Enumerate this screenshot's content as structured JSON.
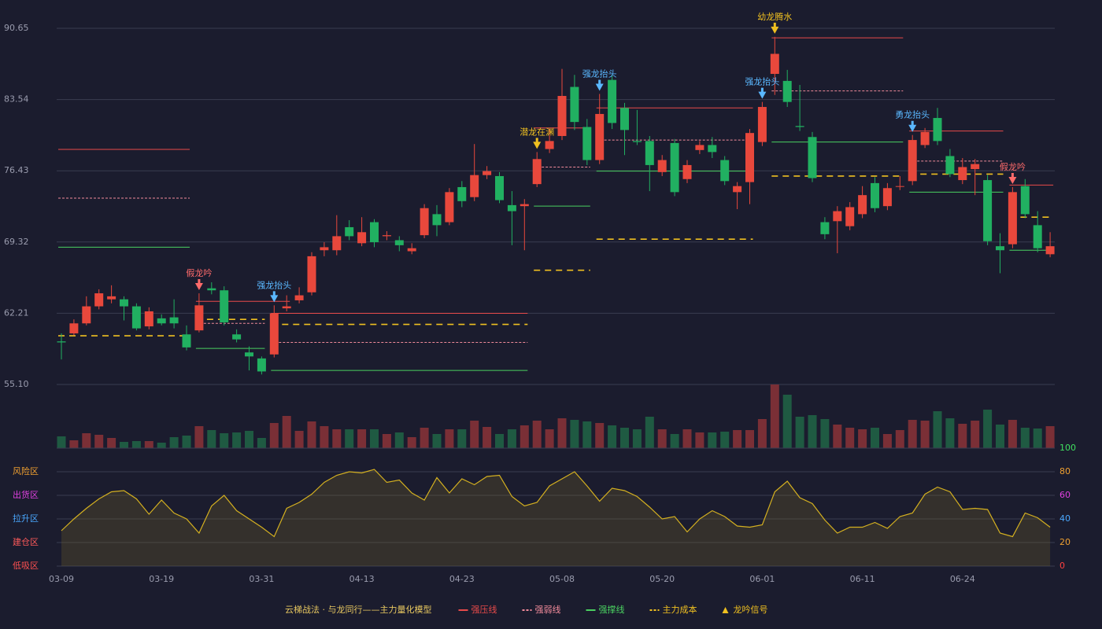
{
  "chart_data": [
    {
      "type": "candlestick",
      "categories": [
        "03-09",
        null,
        null,
        null,
        null,
        null,
        null,
        null,
        "03-19",
        null,
        null,
        null,
        null,
        null,
        null,
        null,
        "03-31",
        null,
        null,
        null,
        null,
        null,
        null,
        null,
        "04-13",
        null,
        null,
        null,
        null,
        null,
        null,
        null,
        "04-23",
        null,
        null,
        null,
        null,
        null,
        null,
        null,
        "05-08",
        null,
        null,
        null,
        null,
        null,
        null,
        null,
        "05-20",
        null,
        null,
        null,
        null,
        null,
        null,
        null,
        "06-01",
        null,
        null,
        null,
        null,
        null,
        null,
        null,
        "06-11",
        null,
        null,
        null,
        null,
        null,
        null,
        null,
        "06-24",
        null,
        null,
        null,
        null,
        null,
        null,
        null
      ],
      "open": [
        59.4,
        60.2,
        61.2,
        62.9,
        63.6,
        63.6,
        62.9,
        60.9,
        61.7,
        61.8,
        60.1,
        60.5,
        64.7,
        64.5,
        60.1,
        58.3,
        57.7,
        58.1,
        62.7,
        63.5,
        64.3,
        68.5,
        68.5,
        70.8,
        69.2,
        71.3,
        69.9,
        69.5,
        68.4,
        70.0,
        72.1,
        71.3,
        74.8,
        73.8,
        76.0,
        75.9,
        73.0,
        72.9,
        75.1,
        78.6,
        79.9,
        84.8,
        80.8,
        77.5,
        85.5,
        82.7,
        79.4,
        79.4,
        76.3,
        79.2,
        75.6,
        78.5,
        79.0,
        77.5,
        74.3,
        75.3,
        79.3,
        86.1,
        85.4,
        80.9,
        79.8,
        71.3,
        71.4,
        70.9,
        72.1,
        75.2,
        72.9,
        74.9,
        75.4,
        79.0,
        81.7,
        77.9,
        75.5,
        76.6,
        75.5,
        68.9,
        69.1,
        74.9,
        71.0,
        68.1
      ],
      "high": [
        60.2,
        61.6,
        63.9,
        64.6,
        65.0,
        63.9,
        63.2,
        62.8,
        62.1,
        63.6,
        61.0,
        64.2,
        65.3,
        64.9,
        60.6,
        58.9,
        57.9,
        63.0,
        64.0,
        64.8,
        68.3,
        69.3,
        72.0,
        71.5,
        71.8,
        71.6,
        70.4,
        69.9,
        69.2,
        73.1,
        73.0,
        74.7,
        75.4,
        79.1,
        76.9,
        76.3,
        74.4,
        73.6,
        78.3,
        80.6,
        86.6,
        86.0,
        81.6,
        84.1,
        86.0,
        83.2,
        82.5,
        79.9,
        78.0,
        79.6,
        77.5,
        79.4,
        79.8,
        77.9,
        75.3,
        80.6,
        83.3,
        89.8,
        86.5,
        85.0,
        80.3,
        71.8,
        72.9,
        73.3,
        74.9,
        75.8,
        75.2,
        75.9,
        80.0,
        80.7,
        82.7,
        78.6,
        77.7,
        77.6,
        76.0,
        70.2,
        74.8,
        75.6,
        72.4,
        70.3
      ],
      "low": [
        57.6,
        60.0,
        61.0,
        62.6,
        63.2,
        61.5,
        60.5,
        60.6,
        61.0,
        60.7,
        58.5,
        60.3,
        64.1,
        61.0,
        59.3,
        56.5,
        56.1,
        57.8,
        62.4,
        63.2,
        64.0,
        67.9,
        68.0,
        69.5,
        68.9,
        68.8,
        69.5,
        68.4,
        68.1,
        69.7,
        69.9,
        71.0,
        72.8,
        73.4,
        75.6,
        73.2,
        69.0,
        68.5,
        74.8,
        78.2,
        79.5,
        80.5,
        77.0,
        77.1,
        80.6,
        78.0,
        79.0,
        74.4,
        75.9,
        73.9,
        75.2,
        78.1,
        77.7,
        75.0,
        72.6,
        73.1,
        78.9,
        84.0,
        82.8,
        80.4,
        75.3,
        69.6,
        68.2,
        70.5,
        71.7,
        72.3,
        72.5,
        74.5,
        75.0,
        78.7,
        79.0,
        75.8,
        75.1,
        74.0,
        69.0,
        66.2,
        68.7,
        71.7,
        68.3,
        67.8
      ],
      "close": [
        59.3,
        61.2,
        62.9,
        64.2,
        63.9,
        62.9,
        60.7,
        62.4,
        61.2,
        61.2,
        58.8,
        63.0,
        64.5,
        61.3,
        59.6,
        57.9,
        56.4,
        62.2,
        62.9,
        64.0,
        67.9,
        68.8,
        69.9,
        69.9,
        70.3,
        69.3,
        70.0,
        69.0,
        68.7,
        72.7,
        71.0,
        74.3,
        73.4,
        76.0,
        76.4,
        73.5,
        72.4,
        73.1,
        77.6,
        79.4,
        83.9,
        81.3,
        77.5,
        82.1,
        81.2,
        80.5,
        79.3,
        77.0,
        77.5,
        74.3,
        77.0,
        79.0,
        78.3,
        75.4,
        74.9,
        80.2,
        82.8,
        88.1,
        83.3,
        80.8,
        75.7,
        70.1,
        72.4,
        72.8,
        74.0,
        72.7,
        74.7,
        74.9,
        79.5,
        80.3,
        79.4,
        76.1,
        76.8,
        77.1,
        69.4,
        68.5,
        74.3,
        72.1,
        68.7,
        68.9
      ],
      "up_color": "#e8483c",
      "down_color": "#21b061",
      "ylim": [
        55.1,
        90.65
      ],
      "yticks": [
        {
          "value": 55.1,
          "label": "55.10"
        },
        62.21,
        69.32,
        76.43,
        83.54,
        90.65
      ],
      "grid": true,
      "legend_title": "云梯战法 · 与龙同行——主力量化模型",
      "levels": [
        {
          "name": "强压线",
          "color": "#e84a4a",
          "dash": false,
          "segments": [
            {
              "from": 0,
              "to": 10,
              "value": 78.56
            },
            {
              "from": 11,
              "to": 18,
              "value": 63.4
            },
            {
              "from": 17,
              "to": 37,
              "value": 62.2
            },
            {
              "from": 38,
              "to": 42,
              "value": 80.7
            },
            {
              "from": 43,
              "to": 55,
              "value": 82.7
            },
            {
              "from": 57,
              "to": 67,
              "value": 89.7
            },
            {
              "from": 68,
              "to": 75,
              "value": 80.4
            },
            {
              "from": 76,
              "to": 79,
              "value": 75.0
            }
          ]
        },
        {
          "name": "强弱线",
          "color": "#f08a9a",
          "dash": true,
          "segments": [
            {
              "from": 0,
              "to": 10,
              "value": 73.7
            },
            {
              "from": 11,
              "to": 16,
              "value": 61.2
            },
            {
              "from": 17,
              "to": 37,
              "value": 59.3
            },
            {
              "from": 38,
              "to": 42,
              "value": 76.8
            },
            {
              "from": 43,
              "to": 55,
              "value": 79.5
            },
            {
              "from": 57,
              "to": 67,
              "value": 84.4
            },
            {
              "from": 68,
              "to": 75,
              "value": 77.4
            }
          ]
        },
        {
          "name": "强撑线",
          "color": "#4ad060",
          "dash": false,
          "segments": [
            {
              "from": 0,
              "to": 10,
              "value": 68.8
            },
            {
              "from": 11,
              "to": 16,
              "value": 58.7
            },
            {
              "from": 17,
              "to": 37,
              "value": 56.5
            },
            {
              "from": 38,
              "to": 42,
              "value": 72.9
            },
            {
              "from": 43,
              "to": 55,
              "value": 76.4
            },
            {
              "from": 57,
              "to": 67,
              "value": 79.3
            },
            {
              "from": 68,
              "to": 75,
              "value": 74.3
            },
            {
              "from": 76,
              "to": 79,
              "value": 68.5
            }
          ]
        },
        {
          "name": "主力成本",
          "color": "#f0c020",
          "dash": true,
          "segments": [
            {
              "from": 0,
              "to": 10,
              "value": 59.96
            },
            {
              "from": 11,
              "to": 16,
              "value": 61.6
            },
            {
              "from": 17,
              "to": 37,
              "value": 61.1
            },
            {
              "from": 38,
              "to": 42,
              "value": 66.5
            },
            {
              "from": 43,
              "to": 55,
              "value": 69.6
            },
            {
              "from": 57,
              "to": 67,
              "value": 75.9
            },
            {
              "from": 68,
              "to": 75,
              "value": 76.1
            },
            {
              "from": 76,
              "to": 79,
              "value": 71.8
            }
          ]
        }
      ],
      "signal_legend": "龙吟信号",
      "signal_legend_color": "#f0c020",
      "signals": [
        {
          "label": "假龙吟",
          "index": 11,
          "color": "#ff6b6b"
        },
        {
          "label": "强龙抬头",
          "index": 17,
          "color": "#5ab8ff"
        },
        {
          "label": "潜龙在渊",
          "index": 38,
          "color": "#f0c020"
        },
        {
          "label": "强龙抬头",
          "index": 43,
          "color": "#5ab8ff"
        },
        {
          "label": "强龙抬头",
          "index": 56,
          "color": "#5ab8ff"
        },
        {
          "label": "幼龙腾水",
          "index": 57,
          "color": "#f0c020"
        },
        {
          "label": "勇龙抬头",
          "index": 68,
          "color": "#5ab8ff"
        },
        {
          "label": "假龙吟",
          "index": 76,
          "color": "#ff6b6b"
        }
      ]
    },
    {
      "type": "bar",
      "values": [
        15,
        10,
        19,
        17,
        13,
        8,
        9,
        9,
        7,
        14,
        16,
        28,
        23,
        19,
        20,
        22,
        13,
        32,
        41,
        22,
        34,
        28,
        24,
        24,
        24,
        24,
        18,
        20,
        14,
        26,
        18,
        24,
        24,
        35,
        27,
        18,
        24,
        29,
        35,
        24,
        38,
        36,
        34,
        32,
        29,
        26,
        24,
        40,
        24,
        18,
        24,
        20,
        20,
        21,
        23,
        23,
        37,
        81,
        68,
        40,
        42,
        37,
        30,
        26,
        24,
        26,
        18,
        23,
        36,
        35,
        47,
        38,
        31,
        35,
        49,
        30,
        36,
        26,
        25,
        28
      ],
      "up_color": "#7a2f36",
      "down_color": "#1f5a42"
    },
    {
      "type": "line",
      "values": [
        30,
        40,
        49,
        57,
        63,
        64,
        57,
        44,
        56,
        45,
        40,
        28,
        51,
        60,
        47,
        40,
        33,
        25,
        49,
        54,
        61,
        71,
        77,
        80,
        79,
        82,
        71,
        73,
        62,
        56,
        75,
        62,
        74,
        69,
        76,
        77,
        59,
        51,
        54,
        68,
        74,
        80,
        68,
        55,
        66,
        64,
        59,
        50,
        40,
        42,
        29,
        40,
        47,
        42,
        34,
        33,
        35,
        63,
        72,
        58,
        53,
        39,
        28,
        33,
        33,
        37,
        32,
        42,
        45,
        61,
        67,
        63,
        48,
        49,
        48,
        28,
        25,
        45,
        41,
        33
      ],
      "color": "#d4b020",
      "ylim": [
        0,
        100
      ],
      "yticks": [
        0,
        20,
        40,
        60,
        80,
        100
      ],
      "ytick_colors": [
        "#ff4040",
        "#f0a030",
        "#4aa8ff",
        "#e040e0",
        "#f0a030",
        "#40e060"
      ],
      "zones": [
        {
          "name": "低吸区",
          "value": 0,
          "color": "#ff5050"
        },
        {
          "name": "建仓区",
          "value": 20,
          "color": "#ff5a5a"
        },
        {
          "name": "拉升区",
          "value": 40,
          "color": "#4aa8ff"
        },
        {
          "name": "出货区",
          "value": 60,
          "color": "#e040e0"
        },
        {
          "name": "风险区",
          "value": 80,
          "color": "#f0a030"
        }
      ]
    }
  ]
}
